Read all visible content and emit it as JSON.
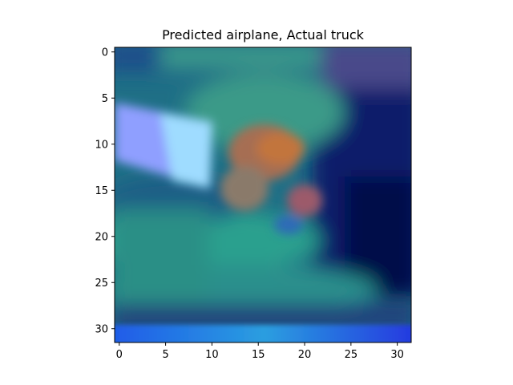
{
  "figure": {
    "title": "Predicted airplane, Actual truck"
  },
  "image_plot": {
    "type": "image",
    "description_free": true,
    "x_axis": {
      "min": -0.5,
      "max": 31.5,
      "ticks": [
        0,
        5,
        10,
        15,
        20,
        25,
        30
      ]
    },
    "y_axis": {
      "min": -0.5,
      "max": 31.5,
      "ticks": [
        0,
        5,
        10,
        15,
        20,
        25,
        30
      ],
      "inverted": true
    },
    "colors": {
      "teal": "#2a8f86",
      "deep_navy": "#0a1454",
      "blue": "#2a4fe0",
      "light_blue": "#9aa8ff",
      "cyan": "#7fe6f2",
      "rust": "#b5704d",
      "indigo": "#3c3c9c"
    }
  }
}
